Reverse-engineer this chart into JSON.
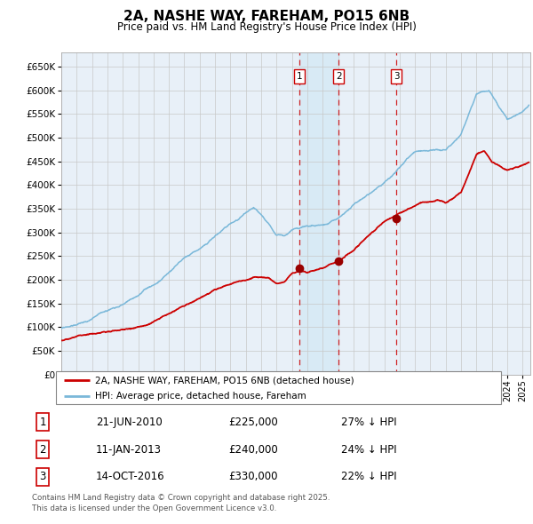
{
  "title": "2A, NASHE WAY, FAREHAM, PO15 6NB",
  "subtitle": "Price paid vs. HM Land Registry's House Price Index (HPI)",
  "legend_line1": "2A, NASHE WAY, FAREHAM, PO15 6NB (detached house)",
  "legend_line2": "HPI: Average price, detached house, Fareham",
  "hpi_color": "#7ab8d9",
  "price_color": "#cc0000",
  "marker_color": "#990000",
  "vline_color": "#cc0000",
  "shade_color": "#d8eaf5",
  "grid_color": "#c8c8c8",
  "bg_color": "#ffffff",
  "plot_bg_color": "#e8f0f8",
  "transactions": [
    {
      "label": "1",
      "date_num": 2010.47,
      "price": 225000
    },
    {
      "label": "2",
      "date_num": 2013.03,
      "price": 240000
    },
    {
      "label": "3",
      "date_num": 2016.79,
      "price": 330000
    }
  ],
  "transaction_table": [
    [
      "1",
      "21-JUN-2010",
      "£225,000",
      "27% ↓ HPI"
    ],
    [
      "2",
      "11-JAN-2013",
      "£240,000",
      "24% ↓ HPI"
    ],
    [
      "3",
      "14-OCT-2016",
      "£330,000",
      "22% ↓ HPI"
    ]
  ],
  "footer": "Contains HM Land Registry data © Crown copyright and database right 2025.\nThis data is licensed under the Open Government Licence v3.0.",
  "ylim": [
    0,
    680000
  ],
  "xlim_start": 1995.0,
  "xlim_end": 2025.5,
  "yticks": [
    0,
    50000,
    100000,
    150000,
    200000,
    250000,
    300000,
    350000,
    400000,
    450000,
    500000,
    550000,
    600000,
    650000
  ],
  "hpi_anchors_t": [
    1995.0,
    1996.0,
    1997.0,
    1998.5,
    2000.0,
    2001.5,
    2003.0,
    2004.5,
    2006.0,
    2007.5,
    2008.5,
    2009.0,
    2009.5,
    2010.0,
    2011.0,
    2012.0,
    2013.0,
    2014.0,
    2015.0,
    2016.0,
    2017.0,
    2018.0,
    2019.0,
    2020.0,
    2021.0,
    2022.0,
    2022.8,
    2023.5,
    2024.0,
    2025.0,
    2025.4
  ],
  "hpi_anchors_v": [
    97000,
    105000,
    115000,
    138000,
    165000,
    195000,
    240000,
    270000,
    310000,
    340000,
    305000,
    282000,
    278000,
    288000,
    295000,
    298000,
    315000,
    338000,
    360000,
    385000,
    415000,
    448000,
    450000,
    448000,
    480000,
    565000,
    572000,
    535000,
    510000,
    528000,
    540000
  ],
  "price_anchors_t": [
    1995.0,
    1996.0,
    1997.5,
    1999.0,
    2000.5,
    2002.0,
    2003.5,
    2005.0,
    2006.5,
    2007.5,
    2008.5,
    2009.0,
    2009.5,
    2010.0,
    2010.47,
    2011.0,
    2011.5,
    2012.0,
    2012.5,
    2013.03,
    2014.0,
    2015.0,
    2016.0,
    2016.79,
    2017.5,
    2018.5,
    2019.5,
    2020.0,
    2021.0,
    2022.0,
    2022.5,
    2023.0,
    2024.0,
    2025.0,
    2025.4
  ],
  "price_anchors_v": [
    72000,
    78000,
    88000,
    98000,
    112000,
    135000,
    158000,
    183000,
    197000,
    208000,
    210000,
    198000,
    200000,
    218000,
    225000,
    222000,
    225000,
    228000,
    235000,
    240000,
    262000,
    292000,
    320000,
    330000,
    343000,
    358000,
    358000,
    352000,
    373000,
    452000,
    460000,
    435000,
    415000,
    425000,
    430000
  ]
}
